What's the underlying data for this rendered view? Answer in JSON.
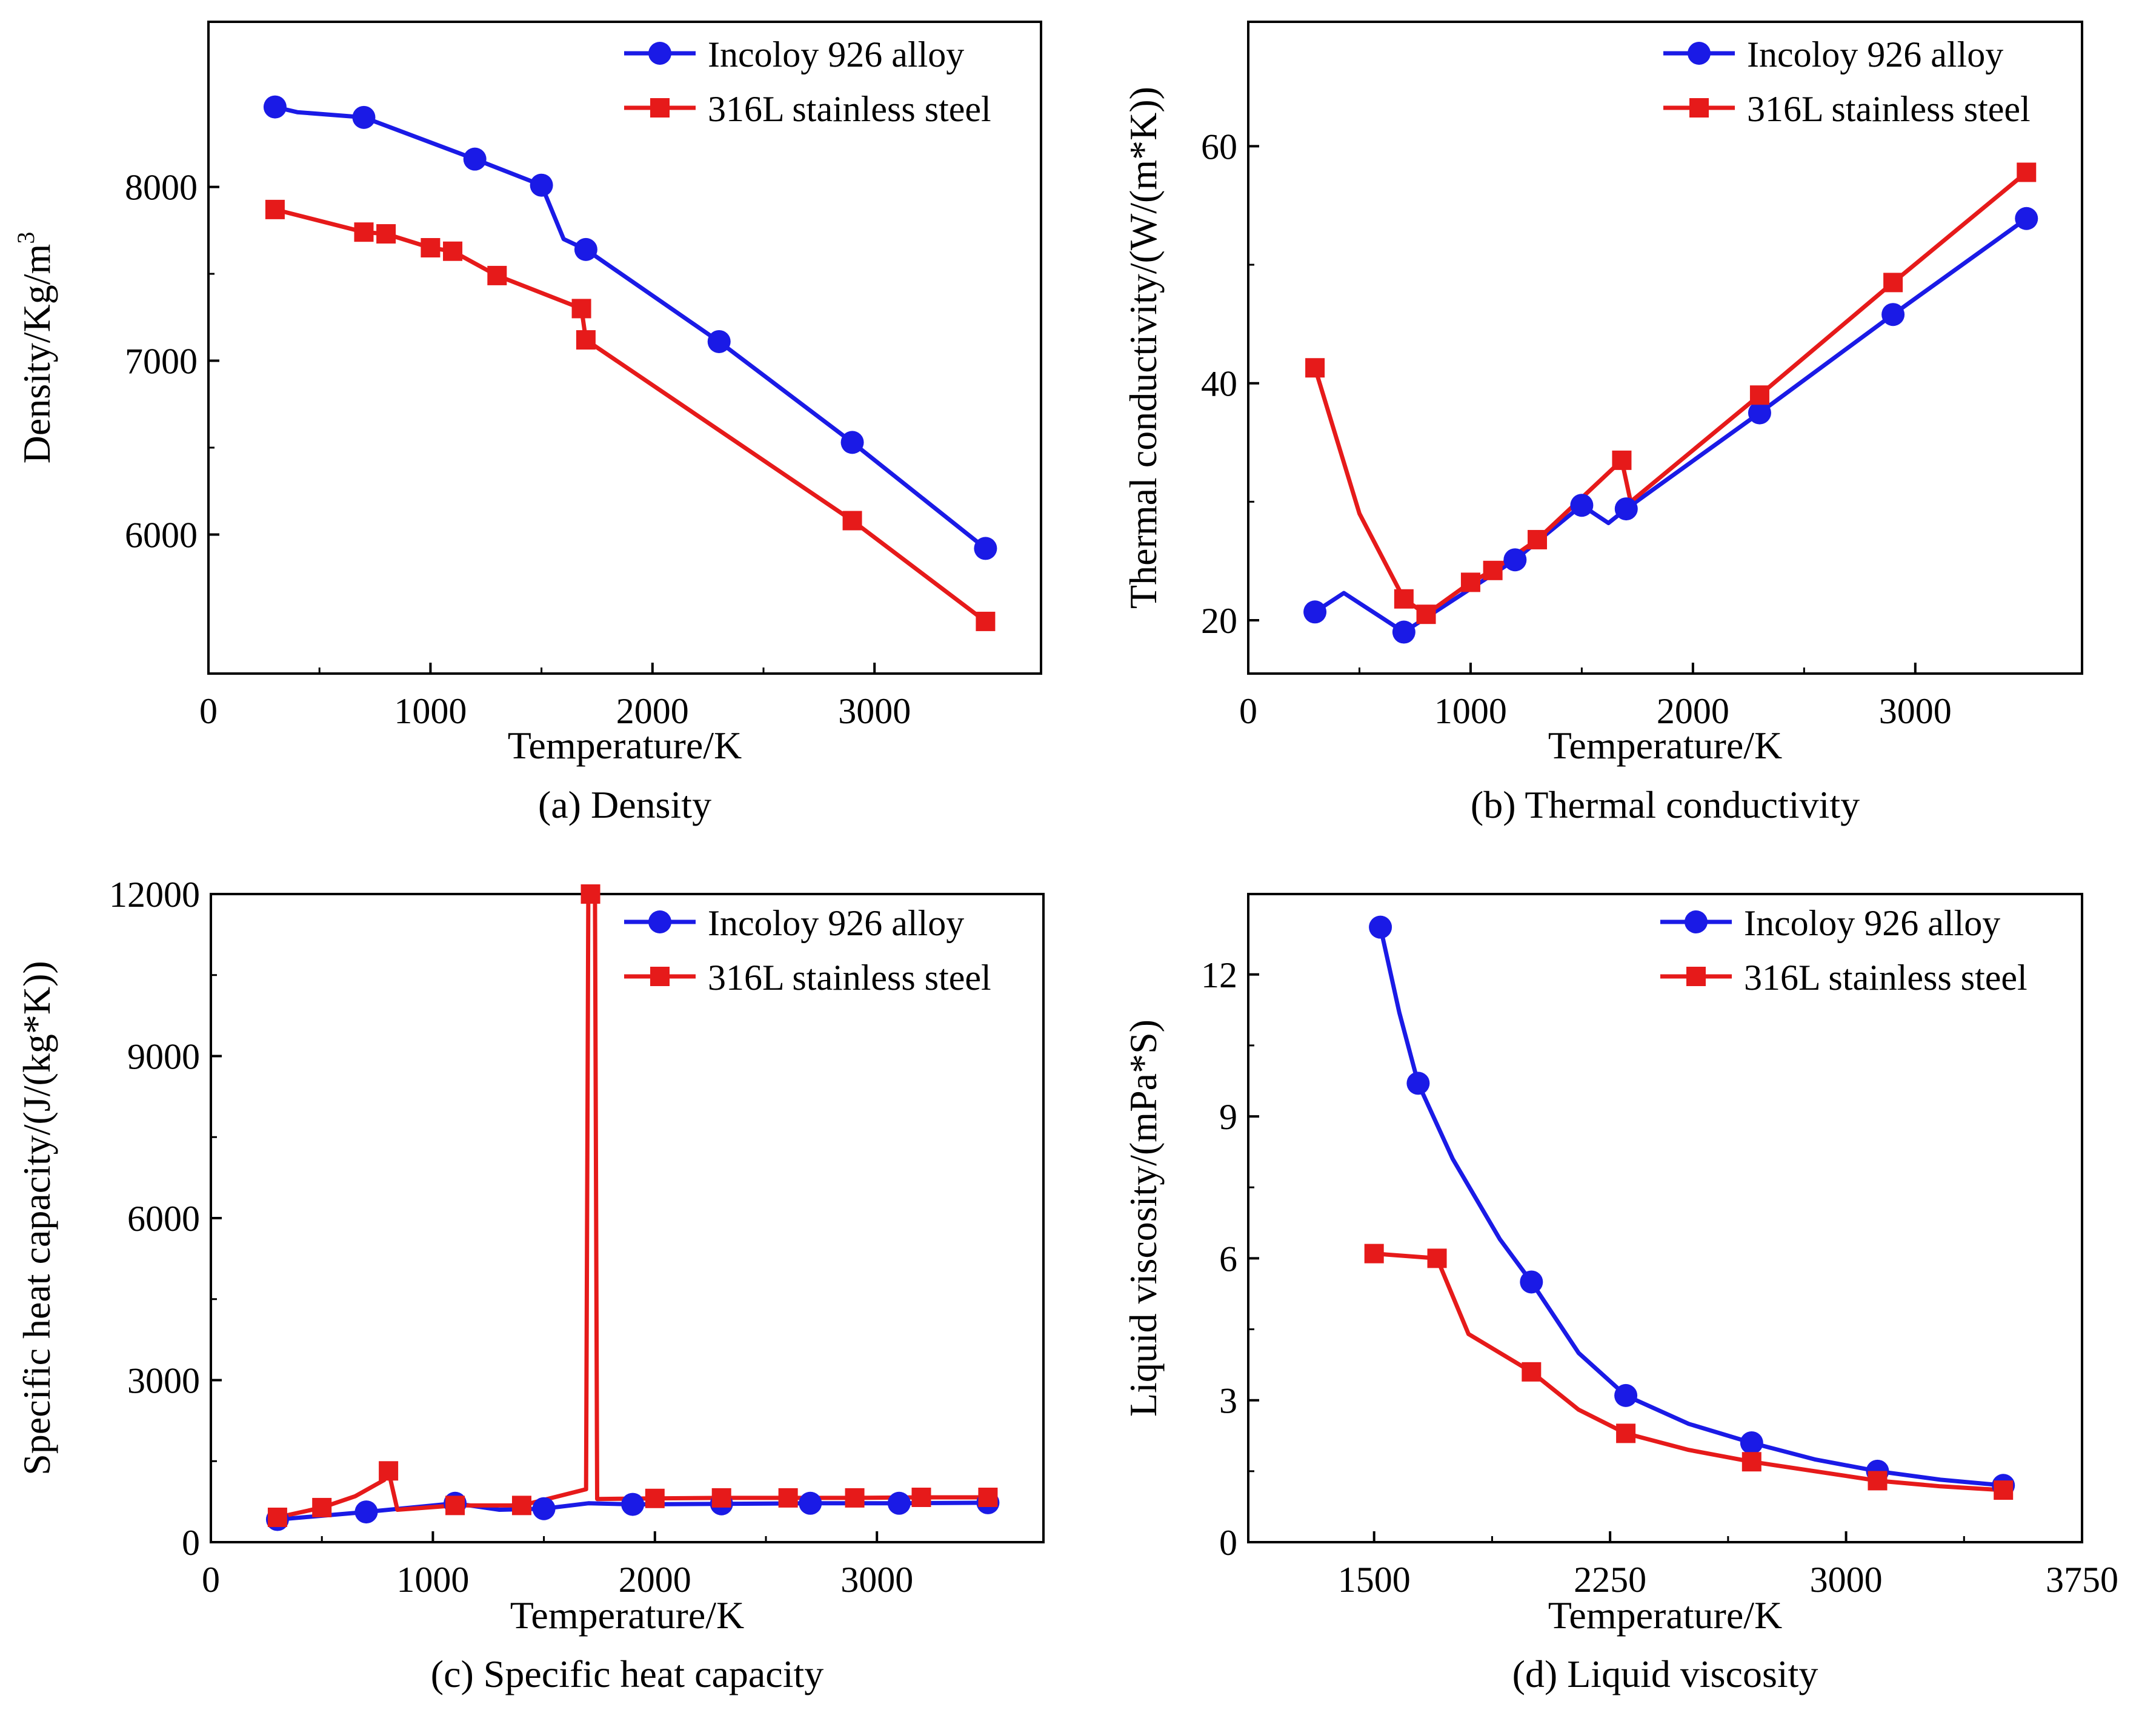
{
  "chart_data": [
    {
      "type": "line",
      "caption": "(a) Density",
      "xlabel": "Temperature/K",
      "ylabel_main": "Density/Kg/m",
      "ylabel_sup": "3",
      "xlim": [
        0,
        3750
      ],
      "ylim": [
        5200,
        8950
      ],
      "xticks": [
        0,
        1000,
        2000,
        3000
      ],
      "yticks": [
        6000,
        7000,
        8000
      ],
      "legend_position": "top-right",
      "series": [
        {
          "name": "Incoloy 926 alloy",
          "color": "#1a1ae6",
          "marker": "circle",
          "line": [
            [
              300,
              8460
            ],
            [
              400,
              8430
            ],
            [
              700,
              8400
            ],
            [
              1200,
              8160
            ],
            [
              1500,
              8010
            ],
            [
              1600,
              7700
            ],
            [
              1700,
              7640
            ],
            [
              2300,
              7110
            ],
            [
              2900,
              6530
            ],
            [
              3500,
              5920
            ]
          ],
          "markers": [
            [
              300,
              8460
            ],
            [
              700,
              8400
            ],
            [
              1200,
              8160
            ],
            [
              1500,
              8010
            ],
            [
              1700,
              7640
            ],
            [
              2300,
              7110
            ],
            [
              2900,
              6530
            ],
            [
              3500,
              5920
            ]
          ]
        },
        {
          "name": "316L stainless steel",
          "color": "#e61a1a",
          "marker": "square",
          "line": [
            [
              300,
              7870
            ],
            [
              700,
              7740
            ],
            [
              800,
              7730
            ],
            [
              1000,
              7650
            ],
            [
              1100,
              7630
            ],
            [
              1300,
              7490
            ],
            [
              1680,
              7300
            ],
            [
              1700,
              7120
            ],
            [
              2900,
              6080
            ],
            [
              3500,
              5500
            ]
          ],
          "markers": [
            [
              300,
              7870
            ],
            [
              700,
              7740
            ],
            [
              800,
              7730
            ],
            [
              1000,
              7650
            ],
            [
              1100,
              7630
            ],
            [
              1300,
              7490
            ],
            [
              1680,
              7300
            ],
            [
              1700,
              7120
            ],
            [
              2900,
              6080
            ],
            [
              3500,
              5500
            ]
          ]
        }
      ]
    },
    {
      "type": "line",
      "caption": "(b) Thermal conductivity",
      "xlabel": "Temperature/K",
      "ylabel_main": "Thermal conductivity/(W/(m*K))",
      "xlim": [
        0,
        3750
      ],
      "ylim": [
        15.5,
        70.5
      ],
      "xticks": [
        0,
        1000,
        2000,
        3000
      ],
      "yticks": [
        20,
        40,
        60
      ],
      "legend_position": "top-right",
      "series": [
        {
          "name": "Incoloy 926 alloy",
          "color": "#1a1ae6",
          "marker": "circle",
          "line": [
            [
              300,
              20.7
            ],
            [
              430,
              22.3
            ],
            [
              700,
              19.0
            ],
            [
              1200,
              25.1
            ],
            [
              1500,
              29.7
            ],
            [
              1620,
              28.2
            ],
            [
              1700,
              29.4
            ],
            [
              2300,
              37.5
            ],
            [
              2900,
              45.8
            ],
            [
              3500,
              53.9
            ]
          ],
          "markers": [
            [
              300,
              20.7
            ],
            [
              700,
              19.0
            ],
            [
              1200,
              25.1
            ],
            [
              1500,
              29.7
            ],
            [
              1700,
              29.4
            ],
            [
              2300,
              37.5
            ],
            [
              2900,
              45.8
            ],
            [
              3500,
              53.9
            ]
          ]
        },
        {
          "name": "316L stainless steel",
          "color": "#e61a1a",
          "marker": "square",
          "line": [
            [
              300,
              41.3
            ],
            [
              500,
              29.0
            ],
            [
              700,
              21.8
            ],
            [
              800,
              20.5
            ],
            [
              1000,
              23.2
            ],
            [
              1100,
              24.2
            ],
            [
              1300,
              26.8
            ],
            [
              1680,
              33.5
            ],
            [
              1720,
              30.0
            ],
            [
              2300,
              39.0
            ],
            [
              2900,
              48.5
            ],
            [
              3500,
              57.8
            ]
          ],
          "markers": [
            [
              300,
              41.3
            ],
            [
              700,
              21.8
            ],
            [
              800,
              20.5
            ],
            [
              1000,
              23.2
            ],
            [
              1100,
              24.2
            ],
            [
              1300,
              26.8
            ],
            [
              1680,
              33.5
            ],
            [
              2300,
              39.0
            ],
            [
              2900,
              48.5
            ],
            [
              3500,
              57.8
            ]
          ]
        }
      ]
    },
    {
      "type": "line",
      "caption": "(c) Specific heat capacity",
      "xlabel": "Temperature/K",
      "ylabel_main": "Specific heat capacity/(J/(kg*K))",
      "xlim": [
        0,
        3750
      ],
      "ylim": [
        0,
        12000
      ],
      "xticks": [
        0,
        1000,
        2000,
        3000
      ],
      "yticks": [
        0,
        3000,
        6000,
        9000,
        12000
      ],
      "legend_position": "top-right",
      "series": [
        {
          "name": "Incoloy 926 alloy",
          "color": "#1a1ae6",
          "marker": "circle",
          "line": [
            [
              300,
              420
            ],
            [
              700,
              560
            ],
            [
              1100,
              720
            ],
            [
              1300,
              600
            ],
            [
              1500,
              620
            ],
            [
              1700,
              720
            ],
            [
              1900,
              700
            ],
            [
              2300,
              710
            ],
            [
              2700,
              720
            ],
            [
              3100,
              720
            ],
            [
              3500,
              730
            ]
          ],
          "markers": [
            [
              300,
              420
            ],
            [
              700,
              560
            ],
            [
              1100,
              720
            ],
            [
              1500,
              620
            ],
            [
              1900,
              700
            ],
            [
              2300,
              710
            ],
            [
              2700,
              720
            ],
            [
              3100,
              720
            ],
            [
              3500,
              730
            ]
          ]
        },
        {
          "name": "316L stainless steel",
          "color": "#e61a1a",
          "marker": "square",
          "line": [
            [
              300,
              460
            ],
            [
              500,
              640
            ],
            [
              650,
              850
            ],
            [
              780,
              1150
            ],
            [
              800,
              1320
            ],
            [
              840,
              600
            ],
            [
              1100,
              680
            ],
            [
              1400,
              680
            ],
            [
              1690,
              980
            ],
            [
              1700,
              12000
            ],
            [
              1730,
              12000
            ],
            [
              1740,
              800
            ],
            [
              2000,
              810
            ],
            [
              2300,
              820
            ],
            [
              2600,
              820
            ],
            [
              2900,
              820
            ],
            [
              3200,
              830
            ],
            [
              3500,
              830
            ]
          ],
          "markers": [
            [
              300,
              460
            ],
            [
              500,
              640
            ],
            [
              800,
              1320
            ],
            [
              1100,
              680
            ],
            [
              1400,
              680
            ],
            [
              1710,
              12000
            ],
            [
              2000,
              810
            ],
            [
              2300,
              820
            ],
            [
              2600,
              820
            ],
            [
              2900,
              820
            ],
            [
              3200,
              830
            ],
            [
              3500,
              830
            ]
          ]
        }
      ]
    },
    {
      "type": "line",
      "caption": "(d) Liquid viscosity",
      "xlabel": "Temperature/K",
      "ylabel_main": "Liquid viscosity/(mPa*S)",
      "xlim": [
        1100,
        3750
      ],
      "ylim": [
        0,
        13.7
      ],
      "xticks": [
        1500,
        2250,
        3000,
        3750
      ],
      "yticks": [
        0,
        3,
        6,
        9,
        12
      ],
      "legend_position": "top-right",
      "series": [
        {
          "name": "Incoloy 926 alloy",
          "color": "#1a1ae6",
          "marker": "circle",
          "line": [
            [
              1520,
              13.0
            ],
            [
              1580,
              11.2
            ],
            [
              1640,
              9.7
            ],
            [
              1750,
              8.1
            ],
            [
              1900,
              6.4
            ],
            [
              2000,
              5.5
            ],
            [
              2150,
              4.0
            ],
            [
              2300,
              3.1
            ],
            [
              2500,
              2.5
            ],
            [
              2700,
              2.1
            ],
            [
              2900,
              1.75
            ],
            [
              3100,
              1.5
            ],
            [
              3300,
              1.32
            ],
            [
              3500,
              1.2
            ]
          ],
          "markers": [
            [
              1520,
              13.0
            ],
            [
              1640,
              9.7
            ],
            [
              2000,
              5.5
            ],
            [
              2300,
              3.1
            ],
            [
              2700,
              2.1
            ],
            [
              3100,
              1.5
            ],
            [
              3500,
              1.2
            ]
          ]
        },
        {
          "name": "316L stainless steel",
          "color": "#e61a1a",
          "marker": "square",
          "line": [
            [
              1500,
              6.1
            ],
            [
              1700,
              6.0
            ],
            [
              1800,
              4.4
            ],
            [
              2000,
              3.6
            ],
            [
              2150,
              2.8
            ],
            [
              2300,
              2.3
            ],
            [
              2500,
              1.95
            ],
            [
              2700,
              1.7
            ],
            [
              2900,
              1.5
            ],
            [
              3100,
              1.3
            ],
            [
              3300,
              1.18
            ],
            [
              3500,
              1.1
            ]
          ],
          "markers": [
            [
              1500,
              6.1
            ],
            [
              1700,
              6.0
            ],
            [
              2000,
              3.6
            ],
            [
              2300,
              2.3
            ],
            [
              2700,
              1.7
            ],
            [
              3100,
              1.3
            ],
            [
              3500,
              1.1
            ]
          ]
        }
      ]
    }
  ]
}
